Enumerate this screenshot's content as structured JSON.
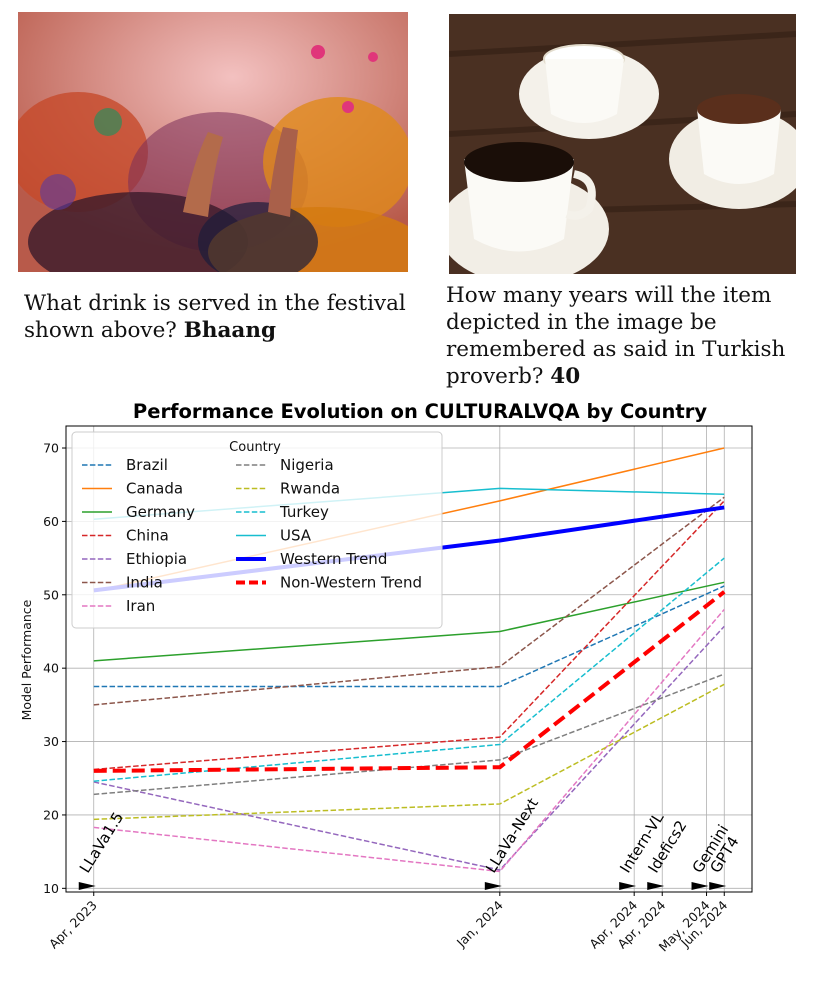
{
  "examples": [
    {
      "question": "What drink is served in the festival shown above?",
      "answer": "Bhaang"
    },
    {
      "question": "How many years will the item depicted in the image be remembered as said in Turkish proverb?",
      "answer": "40"
    }
  ],
  "chart_data": {
    "type": "line",
    "title": "Performance Evolution on CULTURALVQA by Country",
    "xlabel": "",
    "ylabel": "Model Performance",
    "ylim": [
      9.5,
      73
    ],
    "yticks": [
      10,
      20,
      30,
      40,
      50,
      60,
      70
    ],
    "grid": true,
    "legend": {
      "title": "Country",
      "placement": "top-left",
      "columns": 2
    },
    "x_dates": [
      "2023-04-01",
      "2024-01-01",
      "2024-04-01",
      "2024-04-20",
      "2024-05-20",
      "2024-06-01"
    ],
    "x_tick_labels": [
      "Apr, 2023",
      "Jan, 2024",
      "Apr, 2024",
      "Apr, 2024",
      "May, 2024",
      "Jun, 2024"
    ],
    "models": [
      {
        "name": "LLaVa1.5",
        "date": "2023-04-01"
      },
      {
        "name": "LLaVa-Next",
        "date": "2024-01-01"
      },
      {
        "name": "Intern-VL",
        "date": "2024-04-01"
      },
      {
        "name": "Idefics2",
        "date": "2024-04-20"
      },
      {
        "name": "Gemini",
        "date": "2024-05-20"
      },
      {
        "name": "GPT4",
        "date": "2024-06-01"
      }
    ],
    "series": [
      {
        "name": "Brazil",
        "color": "#1f77b4",
        "dash": "dashed",
        "points": [
          [
            "2023-04-01",
            37.5
          ],
          [
            "2024-01-01",
            37.5
          ],
          [
            "2024-06-01",
            51.2
          ]
        ]
      },
      {
        "name": "Canada",
        "color": "#ff7f0e",
        "dash": "solid",
        "points": [
          [
            "2023-04-01",
            50.5
          ],
          [
            "2024-01-01",
            62.8
          ],
          [
            "2024-06-01",
            70
          ]
        ]
      },
      {
        "name": "Germany",
        "color": "#2ca02c",
        "dash": "solid",
        "points": [
          [
            "2023-04-01",
            41
          ],
          [
            "2024-01-01",
            45
          ],
          [
            "2024-06-01",
            51.7
          ]
        ]
      },
      {
        "name": "China",
        "color": "#d62728",
        "dash": "dashed",
        "points": [
          [
            "2023-04-01",
            26.2
          ],
          [
            "2024-01-01",
            30.6
          ],
          [
            "2024-06-01",
            62.8
          ]
        ]
      },
      {
        "name": "Ethiopia",
        "color": "#9467bd",
        "dash": "dashed",
        "points": [
          [
            "2023-04-01",
            24.5
          ],
          [
            "2024-01-01",
            12.5
          ],
          [
            "2024-06-01",
            45.7
          ]
        ]
      },
      {
        "name": "India",
        "color": "#8c564b",
        "dash": "dashed",
        "points": [
          [
            "2023-04-01",
            35
          ],
          [
            "2024-01-01",
            40.2
          ],
          [
            "2024-06-01",
            63.3
          ]
        ]
      },
      {
        "name": "Iran",
        "color": "#e377c2",
        "dash": "dashed",
        "points": [
          [
            "2023-04-01",
            18.3
          ],
          [
            "2024-01-01",
            12.3
          ],
          [
            "2024-06-01",
            48
          ]
        ]
      },
      {
        "name": "Nigeria",
        "color": "#7f7f7f",
        "dash": "dashed",
        "points": [
          [
            "2023-04-01",
            22.8
          ],
          [
            "2024-01-01",
            27.5
          ],
          [
            "2024-06-01",
            39.2
          ]
        ]
      },
      {
        "name": "Rwanda",
        "color": "#bcbd22",
        "dash": "dashed",
        "points": [
          [
            "2023-04-01",
            19.4
          ],
          [
            "2024-01-01",
            21.5
          ],
          [
            "2024-06-01",
            37.8
          ]
        ]
      },
      {
        "name": "Turkey",
        "color": "#17becf",
        "dash": "dashed",
        "points": [
          [
            "2023-04-01",
            24.6
          ],
          [
            "2024-01-01",
            29.6
          ],
          [
            "2024-06-01",
            55
          ]
        ]
      },
      {
        "name": "USA",
        "color": "#17becf",
        "dash": "solid",
        "points": [
          [
            "2023-04-01",
            60.3
          ],
          [
            "2024-01-01",
            64.5
          ],
          [
            "2024-06-01",
            63.7
          ]
        ]
      },
      {
        "name": "Western Trend",
        "color": "#0000ff",
        "dash": "bold-solid",
        "points": [
          [
            "2023-04-01",
            50.6
          ],
          [
            "2024-01-01",
            57.4
          ],
          [
            "2024-06-01",
            61.9
          ]
        ]
      },
      {
        "name": "Non-Western Trend",
        "color": "#ff0000",
        "dash": "bold-dashed",
        "points": [
          [
            "2023-04-01",
            26
          ],
          [
            "2024-01-01",
            26.5
          ],
          [
            "2024-06-01",
            50.4
          ]
        ]
      }
    ]
  }
}
